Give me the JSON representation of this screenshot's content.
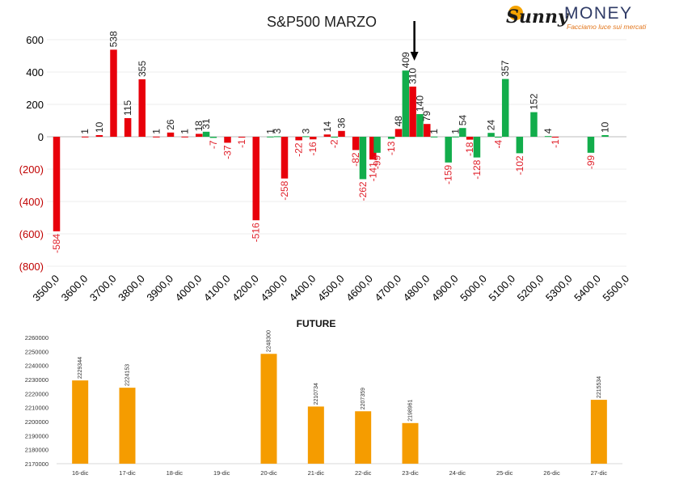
{
  "branding": {
    "logo_sunny": "Sunny",
    "logo_money": "MONEY",
    "tagline": "Facciamo luce sui mercati"
  },
  "chart_data": [
    {
      "type": "bar",
      "title": "S&P500 MARZO",
      "y_ticks": [
        "600",
        "400",
        "200",
        "0",
        "(200)",
        "(400)",
        "(600)",
        "(800)"
      ],
      "ylim": [
        -800,
        600
      ],
      "x_ticks": [
        "3500,0",
        "3600,0",
        "3700,0",
        "3800,0",
        "3900,0",
        "4000,0",
        "4100,0",
        "4200,0",
        "4300,0",
        "4400,0",
        "4500,0",
        "4600,0",
        "4700,0",
        "4800,0",
        "4900,0",
        "5000,0",
        "5100,0",
        "5200,0",
        "5300,0",
        "5400,0",
        "5500,0"
      ],
      "xlim": [
        3500,
        5500
      ],
      "grid": true,
      "colors": {
        "red": "#e8000b",
        "green": "#12ad4b",
        "positive_label": "#222222",
        "negative_label": "#e0212b"
      },
      "series": [
        {
          "color": "red",
          "points": [
            {
              "x": 3500,
              "value": -584
            },
            {
              "x": 3600,
              "value": 1
            },
            {
              "x": 3650,
              "value": 10
            },
            {
              "x": 3700,
              "value": 538
            },
            {
              "x": 3750,
              "value": 115
            },
            {
              "x": 3800,
              "value": 355
            },
            {
              "x": 3850,
              "value": 1
            },
            {
              "x": 3900,
              "value": 26
            },
            {
              "x": 3950,
              "value": 1
            },
            {
              "x": 4000,
              "value": 18
            },
            {
              "x": 4100,
              "value": -37
            },
            {
              "x": 4150,
              "value": -1
            },
            {
              "x": 4200,
              "value": -516
            },
            {
              "x": 4300,
              "value": -258
            },
            {
              "x": 4350,
              "value": -22
            },
            {
              "x": 4400,
              "value": -16
            },
            {
              "x": 4450,
              "value": 14
            },
            {
              "x": 4500,
              "value": 36
            },
            {
              "x": 4550,
              "value": -82
            },
            {
              "x": 4610,
              "value": -141
            },
            {
              "x": 4700,
              "value": 48
            },
            {
              "x": 4750,
              "value": 310
            },
            {
              "x": 4800,
              "value": 79
            },
            {
              "x": 4950,
              "value": -18
            },
            {
              "x": 5250,
              "value": -1
            }
          ]
        },
        {
          "color": "green",
          "points": [
            {
              "x": 4025,
              "value": 31
            },
            {
              "x": 4050,
              "value": -7
            },
            {
              "x": 4250,
              "value": 1
            },
            {
              "x": 4275,
              "value": 3
            },
            {
              "x": 4375,
              "value": 3
            },
            {
              "x": 4475,
              "value": -2
            },
            {
              "x": 4575,
              "value": -262
            },
            {
              "x": 4625,
              "value": -99
            },
            {
              "x": 4675,
              "value": -13
            },
            {
              "x": 4725,
              "value": 409
            },
            {
              "x": 4775,
              "value": 140
            },
            {
              "x": 4825,
              "value": 1
            },
            {
              "x": 4875,
              "value": -159
            },
            {
              "x": 4900,
              "value": 1
            },
            {
              "x": 4925,
              "value": 54
            },
            {
              "x": 4975,
              "value": -128
            },
            {
              "x": 5025,
              "value": 24
            },
            {
              "x": 5050,
              "value": -4
            },
            {
              "x": 5075,
              "value": 357
            },
            {
              "x": 5125,
              "value": -102
            },
            {
              "x": 5175,
              "value": 152
            },
            {
              "x": 5225,
              "value": 4
            },
            {
              "x": 5375,
              "value": -99
            },
            {
              "x": 5425,
              "value": 10
            }
          ]
        }
      ],
      "annotation": {
        "type": "arrow-down",
        "x": 4750
      }
    },
    {
      "type": "bar",
      "title": "FUTURE",
      "categories": [
        "16-dic",
        "17-dic",
        "18-dic",
        "19-dic",
        "20-dic",
        "21-dic",
        "22-dic",
        "23-dic",
        "24-dic",
        "25-dic",
        "26-dic",
        "27-dic"
      ],
      "values": [
        2229344,
        2224153,
        null,
        null,
        2248300,
        2210734,
        2207359,
        2198961,
        null,
        null,
        null,
        2215534
      ],
      "y_ticks": [
        "2260000",
        "2250000",
        "2240000",
        "2230000",
        "2220000",
        "2210000",
        "2200000",
        "2190000",
        "2180000",
        "2170000"
      ],
      "ylim": [
        2170000,
        2260000
      ],
      "color": "#f59c00"
    }
  ]
}
